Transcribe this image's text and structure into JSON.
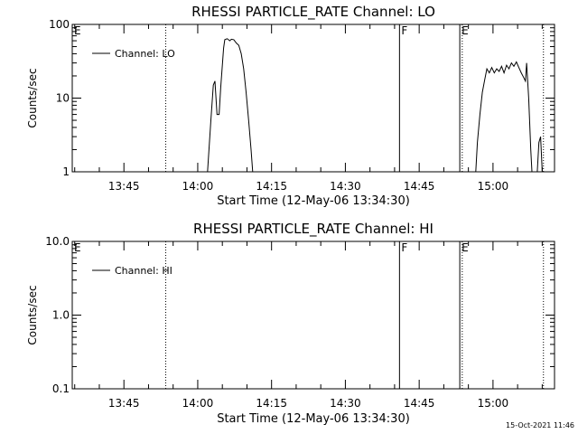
{
  "timestamp": "15-Oct-2021 11:46",
  "chart_data": [
    {
      "type": "line",
      "title": "RHESSI PARTICLE_RATE Channel: LO",
      "xlabel": "Start Time (12-May-06 13:34:30)",
      "ylabel": "Counts/sec",
      "yscale": "log",
      "ylim": [
        1,
        100
      ],
      "xlim": [
        "13:34:30",
        "15:12:30"
      ],
      "xticks": [
        "13:45",
        "14:00",
        "14:15",
        "14:30",
        "14:45",
        "15:00"
      ],
      "yticks": [
        "1",
        "10",
        "100"
      ],
      "legend": "Channel: LO",
      "legend_position": "top-left",
      "markers": [
        {
          "label": "E",
          "time": "13:34:30",
          "style": "solid"
        },
        {
          "label": "",
          "time": "13:53:30",
          "style": "dotted"
        },
        {
          "label": "F",
          "time": "14:41:00",
          "style": "solid"
        },
        {
          "label": "E",
          "time": "14:53:15",
          "style": "solid"
        },
        {
          "label": "",
          "time": "14:53:45",
          "style": "dotted"
        },
        {
          "label": "",
          "time": "15:10:15",
          "style": "dotted"
        }
      ],
      "series": [
        {
          "name": "Channel: LO",
          "segments": [
            [
              [
                "14:02:00",
                1.0
              ],
              [
                "14:02:40",
                5.0
              ],
              [
                "14:03:10",
                15.0
              ],
              [
                "14:03:30",
                17.0
              ],
              [
                "14:03:55",
                6.0
              ],
              [
                "14:04:20",
                6.0
              ],
              [
                "14:04:40",
                14.0
              ],
              [
                "14:05:15",
                48.0
              ],
              [
                "14:05:30",
                62.0
              ],
              [
                "14:06:00",
                64.0
              ],
              [
                "14:06:30",
                60.0
              ],
              [
                "14:06:50",
                63.0
              ],
              [
                "14:07:20",
                62.0
              ],
              [
                "14:07:50",
                56.0
              ],
              [
                "14:08:20",
                52.0
              ],
              [
                "14:08:50",
                40.0
              ],
              [
                "14:09:20",
                25.0
              ],
              [
                "14:09:50",
                12.0
              ],
              [
                "14:10:20",
                5.0
              ],
              [
                "14:10:50",
                2.0
              ],
              [
                "14:11:10",
                1.0
              ]
            ],
            [
              [
                "14:56:30",
                1.0
              ],
              [
                "14:56:50",
                2.5
              ],
              [
                "14:57:20",
                6.0
              ],
              [
                "14:57:50",
                12.0
              ],
              [
                "14:58:20",
                18.0
              ],
              [
                "14:58:45",
                25.0
              ],
              [
                "14:59:15",
                22.0
              ],
              [
                "14:59:45",
                26.0
              ],
              [
                "15:00:15",
                22.0
              ],
              [
                "15:00:45",
                25.0
              ],
              [
                "15:01:15",
                23.0
              ],
              [
                "15:01:45",
                27.0
              ],
              [
                "15:02:15",
                22.0
              ],
              [
                "15:02:45",
                28.0
              ],
              [
                "15:03:15",
                25.0
              ],
              [
                "15:03:45",
                30.0
              ],
              [
                "15:04:15",
                27.0
              ],
              [
                "15:04:45",
                31.0
              ],
              [
                "15:05:15",
                26.0
              ],
              [
                "15:05:45",
                22.0
              ],
              [
                "15:06:15",
                19.0
              ],
              [
                "15:06:35",
                17.0
              ],
              [
                "15:06:50",
                30.0
              ],
              [
                "15:07:15",
                10.0
              ],
              [
                "15:07:40",
                2.0
              ],
              [
                "15:07:55",
                1.0
              ]
            ],
            [
              [
                "15:09:00",
                1.0
              ],
              [
                "15:09:20",
                2.5
              ],
              [
                "15:09:40",
                3.0
              ],
              [
                "15:10:00",
                1.0
              ]
            ]
          ]
        }
      ]
    },
    {
      "type": "line",
      "title": "RHESSI PARTICLE_RATE Channel: HI",
      "xlabel": "Start Time (12-May-06 13:34:30)",
      "ylabel": "Counts/sec",
      "yscale": "log",
      "ylim": [
        0.1,
        10
      ],
      "xlim": [
        "13:34:30",
        "15:12:30"
      ],
      "xticks": [
        "13:45",
        "14:00",
        "14:15",
        "14:30",
        "14:45",
        "15:00"
      ],
      "yticks": [
        "0.1",
        "1.0",
        "10.0"
      ],
      "legend": "Channel: HI",
      "legend_position": "top-left",
      "markers": [
        {
          "label": "E",
          "time": "13:34:30",
          "style": "solid"
        },
        {
          "label": "",
          "time": "13:53:30",
          "style": "dotted"
        },
        {
          "label": "F",
          "time": "14:41:00",
          "style": "solid"
        },
        {
          "label": "E",
          "time": "14:53:15",
          "style": "solid"
        },
        {
          "label": "",
          "time": "14:53:45",
          "style": "dotted"
        },
        {
          "label": "",
          "time": "15:10:15",
          "style": "dotted"
        }
      ],
      "series": [
        {
          "name": "Channel: HI",
          "segments": []
        }
      ]
    }
  ]
}
